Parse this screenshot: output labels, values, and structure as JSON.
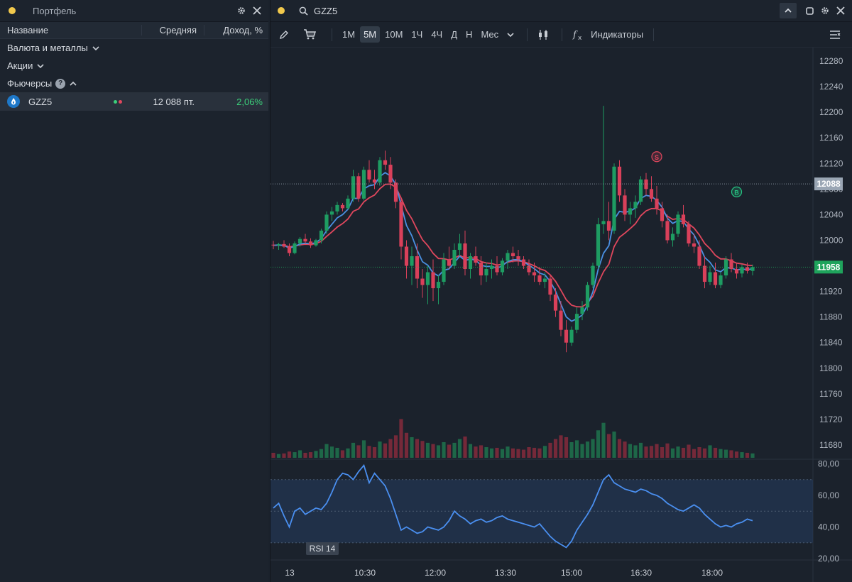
{
  "portfolio": {
    "title": "Портфель",
    "columns": [
      "Название",
      "Средняя",
      "Доход, %"
    ],
    "groups": [
      {
        "label": "Валюта и металлы",
        "state": "collapsed"
      },
      {
        "label": "Акции",
        "state": "collapsed"
      },
      {
        "label": "Фьючерсы",
        "state": "expanded",
        "help": "?"
      }
    ],
    "rows": [
      {
        "ticker": "GZZ5",
        "icon": "gazprom-logo-icon",
        "price": "12 088 пт.",
        "change": "2,06%",
        "change_color": "#3ccf7a"
      }
    ]
  },
  "chart_window": {
    "symbol": "GZZ5",
    "timeframes": [
      "1М",
      "5М",
      "10М",
      "1Ч",
      "4Ч",
      "Д",
      "Н",
      "Мес"
    ],
    "active_timeframe": "5М",
    "indicators_label": "Индикаторы",
    "rsi_label": "RSI 14"
  },
  "chart_data": [
    {
      "type": "candlestick",
      "symbol": "GZZ5",
      "y_ticks": [
        "12280",
        "12240",
        "12200",
        "12160",
        "12120",
        "12080",
        "12040",
        "12000",
        "11960",
        "11920",
        "11880",
        "11840",
        "11800",
        "11760",
        "11720",
        "11680"
      ],
      "ylim": [
        11660,
        12290
      ],
      "x_ticks": [
        "13",
        "10:30",
        "12:00",
        "13:30",
        "15:00",
        "16:30",
        "18:00"
      ],
      "price_labels": [
        {
          "value": "12088",
          "price": 12088,
          "color": "#9aa6b4"
        },
        {
          "value": "11958",
          "price": 11958,
          "color": "#1fa35c"
        }
      ],
      "markers": [
        {
          "label": "S",
          "index": 72,
          "price": 12115,
          "color": "#e0475d"
        },
        {
          "label": "B",
          "index": 87,
          "price": 12060,
          "color": "#26c281"
        }
      ],
      "series": [
        {
          "name": "",
          "kind": "ma_fast",
          "color": "#4a90e2"
        },
        {
          "name": "",
          "kind": "ma_slow",
          "color": "#e0475d"
        }
      ],
      "candles": [
        [
          11993,
          11999,
          11986,
          11992
        ],
        [
          11992,
          11996,
          11985,
          11994
        ],
        [
          11994,
          12000,
          11988,
          11990
        ],
        [
          11990,
          11995,
          11975,
          11980
        ],
        [
          11980,
          11998,
          11978,
          11995
        ],
        [
          11995,
          12005,
          11990,
          12002
        ],
        [
          12002,
          12010,
          11995,
          11998
        ],
        [
          11998,
          12003,
          11988,
          11992
        ],
        [
          11992,
          12002,
          11990,
          12000
        ],
        [
          12000,
          12018,
          11995,
          12015
        ],
        [
          12015,
          12045,
          12010,
          12040
        ],
        [
          12040,
          12052,
          12030,
          12045
        ],
        [
          12045,
          12060,
          12040,
          12055
        ],
        [
          12055,
          12058,
          12045,
          12050
        ],
        [
          12050,
          12070,
          12048,
          12065
        ],
        [
          12065,
          12110,
          12060,
          12100
        ],
        [
          12100,
          12105,
          12060,
          12065
        ],
        [
          12065,
          12115,
          12062,
          12110
        ],
        [
          12110,
          12125,
          12090,
          12095
        ],
        [
          12095,
          12110,
          12080,
          12090
        ],
        [
          12090,
          12130,
          12085,
          12125
        ],
        [
          12125,
          12140,
          12110,
          12118
        ],
        [
          12118,
          12130,
          12080,
          12090
        ],
        [
          12090,
          12095,
          12050,
          12060
        ],
        [
          12060,
          12065,
          11970,
          11990
        ],
        [
          11990,
          12000,
          11940,
          11960
        ],
        [
          11960,
          11990,
          11930,
          11975
        ],
        [
          11975,
          11995,
          11925,
          11940
        ],
        [
          11940,
          11955,
          11910,
          11930
        ],
        [
          11930,
          11960,
          11900,
          11950
        ],
        [
          11950,
          11970,
          11905,
          11925
        ],
        [
          11925,
          11945,
          11900,
          11935
        ],
        [
          11935,
          11980,
          11930,
          11970
        ],
        [
          11970,
          11990,
          11955,
          11960
        ],
        [
          11960,
          11995,
          11955,
          11985
        ],
        [
          11985,
          12010,
          11975,
          11995
        ],
        [
          11995,
          12015,
          11945,
          11955
        ],
        [
          11955,
          11980,
          11940,
          11975
        ],
        [
          11975,
          11990,
          11960,
          11965
        ],
        [
          11965,
          11975,
          11930,
          11945
        ],
        [
          11945,
          11965,
          11935,
          11955
        ],
        [
          11955,
          11970,
          11940,
          11960
        ],
        [
          11960,
          11975,
          11945,
          11950
        ],
        [
          11950,
          11972,
          11945,
          11968
        ],
        [
          11968,
          11985,
          11955,
          11980
        ],
        [
          11980,
          11990,
          11965,
          11975
        ],
        [
          11975,
          11985,
          11960,
          11970
        ],
        [
          11970,
          11975,
          11955,
          11960
        ],
        [
          11960,
          11970,
          11945,
          11950
        ],
        [
          11950,
          11965,
          11935,
          11945
        ],
        [
          11945,
          11958,
          11930,
          11935
        ],
        [
          11935,
          11950,
          11925,
          11940
        ],
        [
          11940,
          11945,
          11905,
          11915
        ],
        [
          11915,
          11925,
          11880,
          11890
        ],
        [
          11890,
          11905,
          11850,
          11860
        ],
        [
          11860,
          11875,
          11825,
          11840
        ],
        [
          11840,
          11865,
          11835,
          11860
        ],
        [
          11860,
          11895,
          11855,
          11885
        ],
        [
          11885,
          11905,
          11875,
          11895
        ],
        [
          11895,
          11935,
          11890,
          11930
        ],
        [
          11930,
          11965,
          11925,
          11960
        ],
        [
          11960,
          12035,
          11955,
          12025
        ],
        [
          12025,
          12210,
          12010,
          12030
        ],
        [
          12030,
          12060,
          12000,
          12015
        ],
        [
          12015,
          12120,
          12010,
          12115
        ],
        [
          12115,
          12125,
          12060,
          12070
        ],
        [
          12070,
          12080,
          12030,
          12040
        ],
        [
          12040,
          12060,
          12025,
          12050
        ],
        [
          12050,
          12070,
          12035,
          12060
        ],
        [
          12060,
          12100,
          12055,
          12095
        ],
        [
          12095,
          12105,
          12070,
          12080
        ],
        [
          12080,
          12100,
          12060,
          12065
        ],
        [
          12065,
          12085,
          12040,
          12050
        ],
        [
          12050,
          12060,
          12020,
          12030
        ],
        [
          12030,
          12040,
          11995,
          12000
        ],
        [
          12000,
          12020,
          11990,
          12010
        ],
        [
          12010,
          12045,
          12005,
          12040
        ],
        [
          12040,
          12055,
          12020,
          12025
        ],
        [
          12025,
          12030,
          11990,
          11995
        ],
        [
          11995,
          12010,
          11980,
          11990
        ],
        [
          11990,
          12000,
          11955,
          11960
        ],
        [
          11960,
          11975,
          11925,
          11935
        ],
        [
          11935,
          11960,
          11930,
          11950
        ],
        [
          11950,
          11965,
          11925,
          11930
        ],
        [
          11930,
          11950,
          11925,
          11945
        ],
        [
          11945,
          11975,
          11940,
          11970
        ],
        [
          11970,
          11980,
          11950,
          11955
        ],
        [
          11955,
          11965,
          11940,
          11948
        ],
        [
          11948,
          11962,
          11942,
          11958
        ],
        [
          11958,
          11965,
          11948,
          11952
        ],
        [
          11952,
          11962,
          11945,
          11958
        ]
      ],
      "volume_ylim": [
        0,
        100
      ],
      "volumes": [
        8,
        6,
        7,
        10,
        9,
        12,
        8,
        9,
        11,
        14,
        22,
        18,
        16,
        12,
        15,
        24,
        20,
        28,
        19,
        17,
        26,
        23,
        30,
        36,
        62,
        40,
        33,
        30,
        27,
        24,
        22,
        20,
        25,
        21,
        24,
        30,
        34,
        22,
        18,
        20,
        17,
        15,
        16,
        14,
        18,
        15,
        14,
        13,
        17,
        16,
        15,
        19,
        24,
        30,
        36,
        33,
        25,
        28,
        22,
        26,
        30,
        44,
        56,
        38,
        42,
        30,
        26,
        22,
        20,
        24,
        18,
        19,
        22,
        17,
        23,
        15,
        18,
        16,
        21,
        14,
        17,
        15,
        20,
        16,
        14,
        13,
        12,
        10,
        9,
        8,
        7
      ],
      "rsi": {
        "label": "RSI 14",
        "ylim": [
          20,
          82
        ],
        "y_ticks": [
          "80,00",
          "60,00",
          "40,00",
          "20,00"
        ],
        "bands": [
          30,
          70
        ],
        "values": [
          52,
          55,
          47,
          40,
          50,
          52,
          48,
          50,
          52,
          51,
          55,
          62,
          70,
          74,
          73,
          70,
          75,
          79,
          68,
          74,
          70,
          66,
          58,
          48,
          38,
          40,
          38,
          36,
          37,
          40,
          39,
          38,
          40,
          44,
          50,
          47,
          45,
          42,
          44,
          45,
          43,
          44,
          46,
          47,
          45,
          44,
          43,
          42,
          41,
          40,
          42,
          38,
          34,
          31,
          29,
          27,
          31,
          38,
          43,
          48,
          54,
          62,
          70,
          73,
          68,
          66,
          64,
          63,
          62,
          64,
          63,
          61,
          60,
          58,
          55,
          53,
          51,
          50,
          52,
          54,
          52,
          48,
          45,
          42,
          40,
          41,
          40,
          42,
          43,
          45,
          44
        ]
      }
    }
  ]
}
